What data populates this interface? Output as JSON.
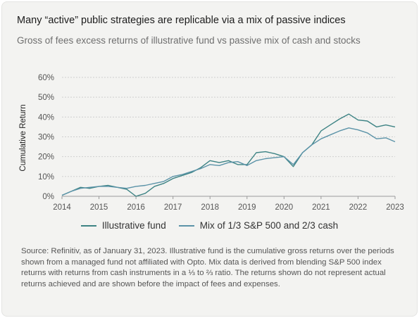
{
  "title": "Many “active” public strategies are replicable via a mix of passive indices",
  "subtitle": "Gross of fees excess returns of illustrative fund vs passive mix of cash and stocks",
  "source_note": "Source: Refinitiv, as of January 31, 2023. Illustrative fund is the cumulative gross returns over the periods shown from a managed fund not affiliated with Opto. Mix data is derived from blending S&P 500 index returns with returns from cash instruments in a ⅓ to ⅔ ratio. The returns shown do not represent actual returns achieved and are shown before the impact of fees and expenses.",
  "chart_data": {
    "type": "line",
    "ylabel": "Cumulative Return",
    "xlim": [
      2014,
      2023
    ],
    "ylim": [
      0,
      60
    ],
    "x_ticks": [
      "2014",
      "2015",
      "2016",
      "2017",
      "2018",
      "2019",
      "2020",
      "2021",
      "2022",
      "2023"
    ],
    "y_ticks": [
      "0%",
      "10%",
      "20%",
      "30%",
      "40%",
      "50%",
      "60%"
    ],
    "grid": "horizontal dashed",
    "legend_position": "bottom",
    "x": [
      2014.0,
      2014.25,
      2014.5,
      2014.75,
      2015.0,
      2015.25,
      2015.5,
      2015.75,
      2016.0,
      2016.25,
      2016.5,
      2016.75,
      2017.0,
      2017.25,
      2017.5,
      2017.75,
      2018.0,
      2018.25,
      2018.5,
      2018.75,
      2019.0,
      2019.25,
      2019.5,
      2019.75,
      2020.0,
      2020.25,
      2020.5,
      2020.75,
      2021.0,
      2021.25,
      2021.5,
      2021.75,
      2022.0,
      2022.25,
      2022.5,
      2022.75,
      2023.0
    ],
    "series": [
      {
        "name": "Illustrative fund",
        "color": "#3d8384",
        "values": [
          0.5,
          2.5,
          4.5,
          4.0,
          5.0,
          5.5,
          4.5,
          3.5,
          0.0,
          1.5,
          5.0,
          6.5,
          9.0,
          10.5,
          12.0,
          14.5,
          18.0,
          17.0,
          18.0,
          16.0,
          16.0,
          22.0,
          22.5,
          21.5,
          20.0,
          15.0,
          22.0,
          26.0,
          33.0,
          36.0,
          39.0,
          41.5,
          38.5,
          38.0,
          35.0,
          36.0,
          35.0
        ]
      },
      {
        "name": "Mix of 1/3 S&P 500 and 2/3 cash",
        "color": "#5b93a8",
        "values": [
          0.5,
          2.5,
          4.0,
          4.5,
          5.0,
          5.0,
          4.5,
          4.0,
          5.0,
          5.5,
          6.5,
          7.5,
          10.0,
          11.0,
          12.5,
          14.0,
          16.0,
          15.5,
          17.0,
          17.5,
          15.5,
          18.0,
          19.0,
          19.5,
          20.0,
          16.0,
          22.0,
          26.0,
          29.0,
          31.0,
          33.0,
          34.5,
          33.5,
          32.0,
          29.0,
          29.5,
          27.5
        ]
      }
    ]
  }
}
